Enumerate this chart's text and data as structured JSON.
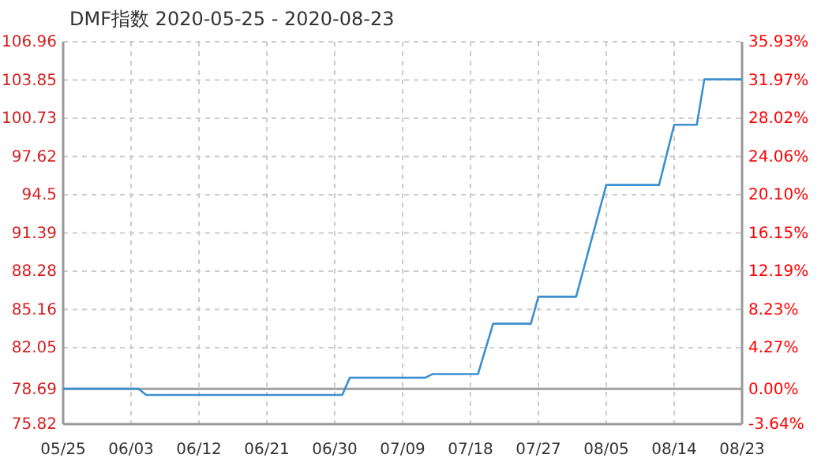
{
  "chart_data": {
    "type": "line",
    "title": "DMF指数 2020-05-25 - 2020-08-23",
    "x": [
      "2020-05-25",
      "2020-06-04",
      "2020-06-05",
      "2020-07-01",
      "2020-07-02",
      "2020-07-12",
      "2020-07-13",
      "2020-07-19",
      "2020-07-21",
      "2020-07-26",
      "2020-07-27",
      "2020-08-01",
      "2020-08-05",
      "2020-08-12",
      "2020-08-14",
      "2020-08-17",
      "2020-08-18",
      "2020-08-23"
    ],
    "series": [
      {
        "color": "#3c90d0",
        "values": [
          78.7,
          78.7,
          78.2,
          78.2,
          79.6,
          79.6,
          79.9,
          79.9,
          84.0,
          84.0,
          86.2,
          86.2,
          95.3,
          95.3,
          100.2,
          100.2,
          103.9,
          103.9
        ]
      }
    ],
    "xlim": [
      "2020-05-25",
      "2020-08-23"
    ],
    "xticks": [
      {
        "value": "2020-05-25",
        "label": "05/25"
      },
      {
        "value": "2020-06-03",
        "label": "06/03"
      },
      {
        "value": "2020-06-12",
        "label": "06/12"
      },
      {
        "value": "2020-06-21",
        "label": "06/21"
      },
      {
        "value": "2020-06-30",
        "label": "06/30"
      },
      {
        "value": "2020-07-09",
        "label": "07/09"
      },
      {
        "value": "2020-07-18",
        "label": "07/18"
      },
      {
        "value": "2020-07-27",
        "label": "07/27"
      },
      {
        "value": "2020-08-05",
        "label": "08/05"
      },
      {
        "value": "2020-08-14",
        "label": "08/14"
      },
      {
        "value": "2020-08-23",
        "label": "08/23"
      }
    ],
    "ylim": [
      75.82,
      106.96
    ],
    "yticks": [
      75.82,
      78.69,
      82.05,
      85.16,
      88.28,
      91.39,
      94.5,
      97.62,
      100.73,
      103.85,
      106.96
    ],
    "y2lim": [
      -3.64,
      35.93
    ],
    "y2ticks": [
      {
        "value": -3.64,
        "label": "-3.64%"
      },
      {
        "value": 0,
        "label": "0.00%"
      },
      {
        "value": 4.27,
        "label": "4.27%"
      },
      {
        "value": 8.23,
        "label": "8.23%"
      },
      {
        "value": 12.19,
        "label": "12.19%"
      },
      {
        "value": 16.15,
        "label": "16.15%"
      },
      {
        "value": 20.1,
        "label": "20.10%"
      },
      {
        "value": 24.06,
        "label": "24.06%"
      },
      {
        "value": 28.02,
        "label": "28.02%"
      },
      {
        "value": 31.97,
        "label": "31.97%"
      },
      {
        "value": 35.93,
        "label": "35.93%"
      }
    ],
    "ref_lines": [
      {
        "axis": "y",
        "value": 78.69,
        "color": "#a0a0a0"
      }
    ],
    "grid": true,
    "line_style": "solid",
    "marker": "none"
  }
}
